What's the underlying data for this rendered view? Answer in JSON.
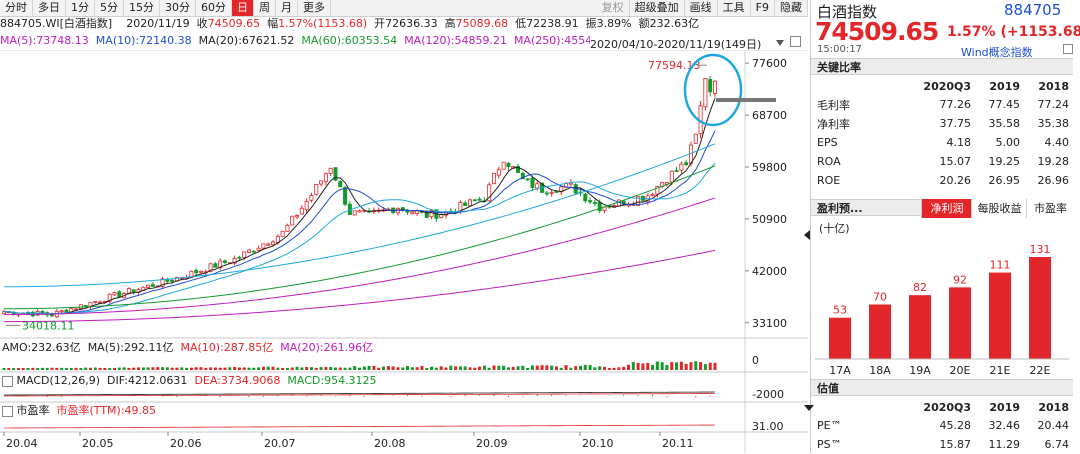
{
  "toolbar": {
    "tabs": [
      "分时",
      "多日",
      "1分",
      "5分",
      "15分",
      "30分",
      "60分",
      "日",
      "周",
      "月",
      "更多"
    ],
    "active_tab": "日",
    "right_tabs": [
      "复权",
      "超级叠加",
      "画线",
      "工具",
      "F9",
      "隐藏"
    ]
  },
  "info": {
    "code_name": "884705.WI[白酒指数]",
    "date": "2020/11/19",
    "close_label": "收",
    "close": "74509.65",
    "change_label": "幅",
    "change": "1.57%(1153.68)",
    "open_label": "开",
    "open": "72636.33",
    "high_label": "高",
    "high": "75089.68",
    "low_label": "低",
    "low": "72238.91",
    "amp_label": "振",
    "amp": "3.89%",
    "amount_label": "额",
    "amount": "232.63亿"
  },
  "ma": {
    "ma5": "MA(5):73748.13",
    "ma10": "MA(10):72140.38",
    "ma20": "MA(20):67621.52",
    "ma60": "MA(60):60353.54",
    "ma120": "MA(120):54859.21",
    "ma250": "MA(250):45541.5"
  },
  "range_text": "2020/04/10-2020/11/19(149日)",
  "price_axis": [
    "77600",
    "68700",
    "59800",
    "50900",
    "42000",
    "33100"
  ],
  "annot": {
    "high": "77594.13",
    "low": "34018.11"
  },
  "volume": {
    "label_amo": "AMO:232.63亿",
    "label_ma5": "MA(5):292.11亿",
    "label_ma10": "MA(10):287.85亿",
    "label_ma20": "MA(20):261.96亿",
    "axis": "0"
  },
  "macd": {
    "label": "MACD(12,26,9)",
    "dif": "DIF:4212.0631",
    "dea": "DEA:3734.9068",
    "macd": "MACD:954.3125",
    "axis": "-2000"
  },
  "pe": {
    "label": "市盈率",
    "ttm": "市盈率(TTM):49.85",
    "axis": "31.00"
  },
  "date_axis": [
    "20.04",
    "20.05",
    "20.06",
    "20.07",
    "20.08",
    "20.09",
    "20.10",
    "20.11"
  ],
  "right": {
    "name": "白酒指数",
    "code": "884705",
    "price": "74509.65",
    "change": "1.57% (+1153.68)",
    "time": "15:00:17",
    "concept": "Wind概念指数",
    "ratios_title": "关键比率",
    "ratios_cols": [
      "2020Q3",
      "2019",
      "2018"
    ],
    "ratios": [
      {
        "label": "毛利率",
        "v": [
          "77.26",
          "77.45",
          "77.24"
        ]
      },
      {
        "label": "净利率",
        "v": [
          "37.75",
          "35.58",
          "35.38"
        ]
      },
      {
        "label": "EPS",
        "v": [
          "4.18",
          "5.00",
          "4.40"
        ]
      },
      {
        "label": "ROA",
        "v": [
          "15.07",
          "19.25",
          "19.28"
        ]
      },
      {
        "label": "ROE",
        "v": [
          "20.26",
          "26.95",
          "26.96"
        ]
      }
    ],
    "forecast_title": "盈利预...",
    "forecast_tabs": [
      "净利润",
      "每股收益",
      "市盈率"
    ],
    "forecast_active": "净利润",
    "unit": "(十亿)",
    "valuation_title": "估值",
    "val_cols": [
      "2020Q3",
      "2019",
      "2018"
    ],
    "valuation": [
      {
        "label": "PE™",
        "v": [
          "45.28",
          "32.46",
          "20.44"
        ]
      },
      {
        "label": "PS™",
        "v": [
          "15.87",
          "11.29",
          "6.74"
        ]
      }
    ]
  },
  "chart_data": {
    "type": "bar",
    "categories": [
      "17A",
      "18A",
      "19A",
      "20E",
      "21E",
      "22E"
    ],
    "values": [
      53,
      70,
      82,
      92,
      111,
      131
    ],
    "ylim": [
      0,
      140
    ],
    "color": "#e3262a"
  },
  "colors": {
    "up": "#e3262a",
    "down": "#139b2c",
    "ma5": "#222222",
    "ma10": "#1d4fd6",
    "ma20": "#1fa8e0",
    "ma60": "#139b2c",
    "ma120": "#c01cc0",
    "circle": "#1fa8e0"
  }
}
